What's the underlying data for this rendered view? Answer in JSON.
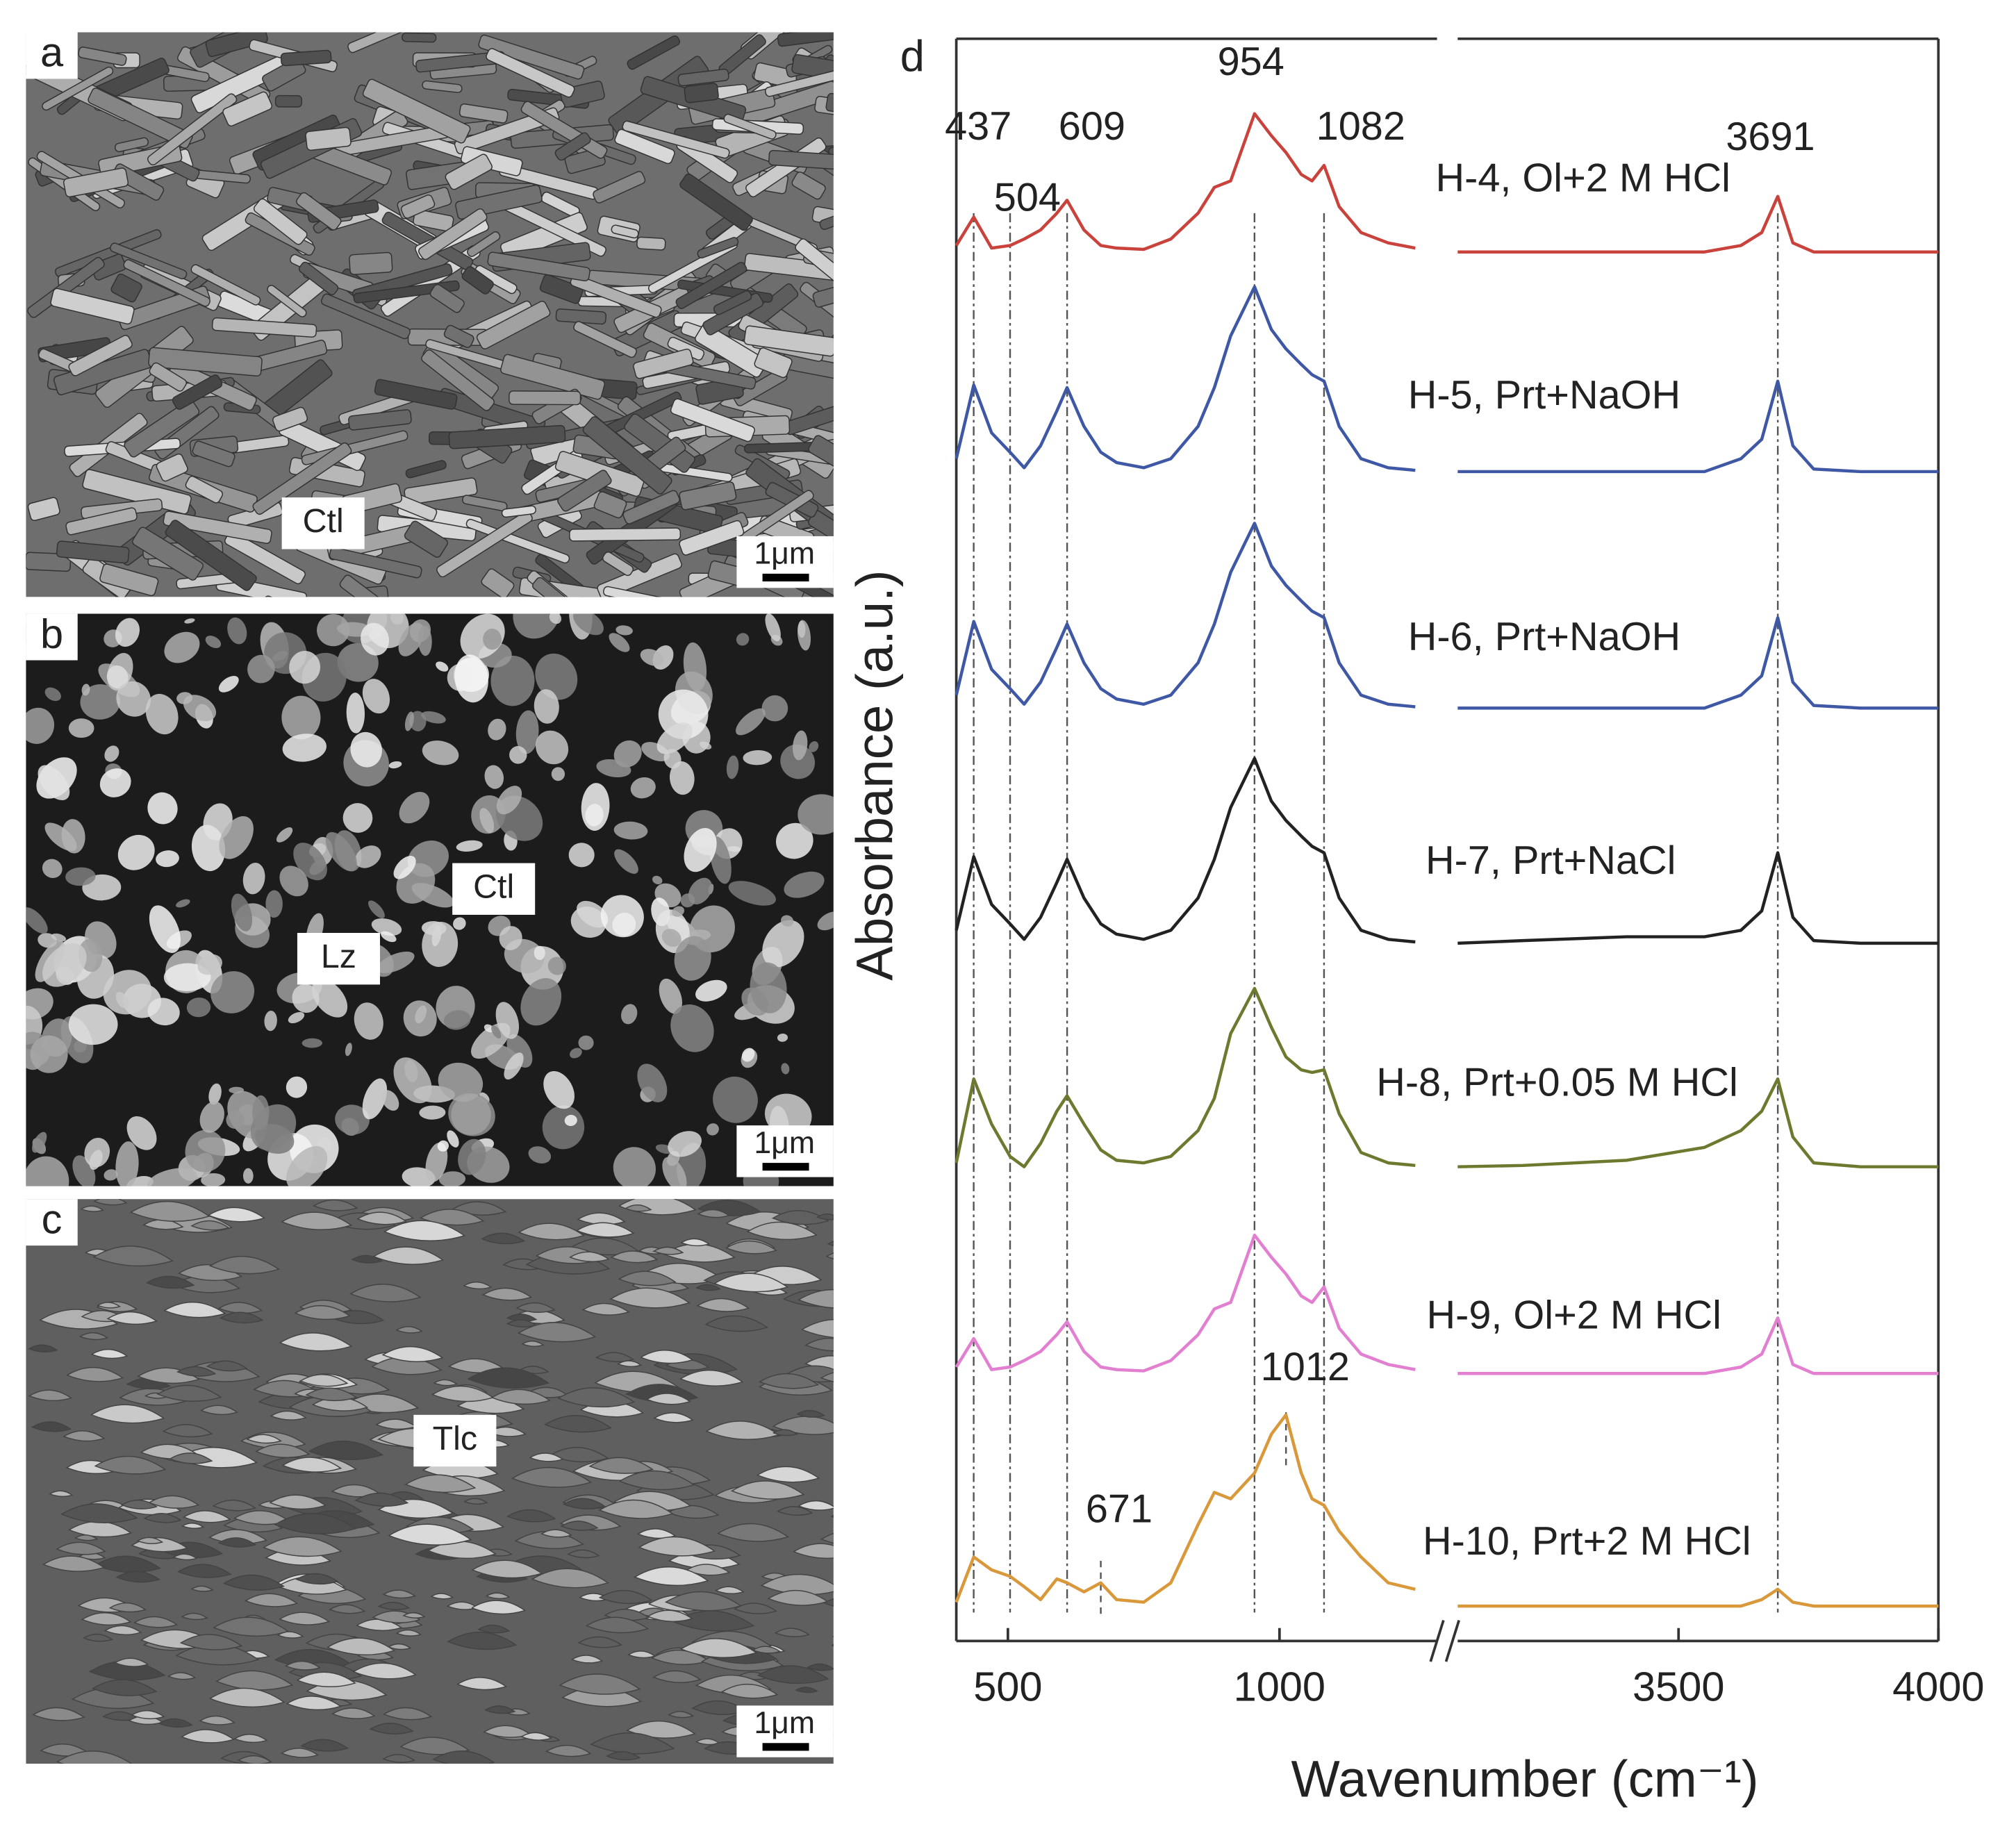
{
  "sem_panels": [
    {
      "label": "a",
      "annotations": [
        "Ctl"
      ],
      "scale_bar": "1μm"
    },
    {
      "label": "b",
      "annotations": [
        "Lz",
        "Ctl"
      ],
      "scale_bar": "1μm"
    },
    {
      "label": "c",
      "annotations": [
        "Tlc"
      ],
      "scale_bar": "1μm"
    }
  ],
  "chart_data": {
    "type": "line",
    "panel_label": "d",
    "x_label": "Wavenumber (cm⁻¹)",
    "y_label": "Absorbance (a.u.)",
    "x_segments": [
      {
        "xlim": [
          405,
          1290
        ],
        "xticks": [
          500,
          1000
        ]
      },
      {
        "xlim": [
          3075,
          4000
        ],
        "xticks": [
          3500,
          4000
        ]
      }
    ],
    "ylim": [
      0,
      124
    ],
    "peaks": [
      437,
      504,
      609,
      954,
      1082,
      3691
    ],
    "minor_peaks": [
      671,
      1012
    ],
    "x": [
      405,
      437,
      470,
      504,
      530,
      560,
      590,
      609,
      640,
      671,
      700,
      750,
      800,
      850,
      880,
      910,
      954,
      985,
      1012,
      1040,
      1060,
      1082,
      1110,
      1150,
      1200,
      1250,
      3075,
      3200,
      3400,
      3550,
      3620,
      3660,
      3691,
      3720,
      3760,
      3850,
      4000
    ],
    "series": [
      {
        "name": "H-4, Ol+2 M HCl",
        "color": "#c9423b",
        "values": [
          108,
          110.2,
          107.8,
          108,
          108.5,
          109.2,
          110.5,
          111.5,
          109.2,
          108,
          107.8,
          107.7,
          108.5,
          110.5,
          112.5,
          113,
          118.2,
          116.5,
          115.2,
          113.5,
          113,
          114.2,
          111,
          109,
          108.2,
          107.8,
          107.5,
          107.5,
          107.5,
          107.5,
          108,
          109,
          111.8,
          108.2,
          107.5,
          107.5,
          107.5
        ]
      },
      {
        "name": "H-5, Prt+NaOH",
        "color": "#3f58a6",
        "values": [
          91.5,
          97.2,
          93.5,
          92,
          90.8,
          92.5,
          95.2,
          97,
          94,
          92,
          91.2,
          90.8,
          91.5,
          94,
          97,
          101,
          104.8,
          101.5,
          100,
          98.8,
          98,
          97.5,
          94,
          91.5,
          90.8,
          90.6,
          90.5,
          90.5,
          90.5,
          90.5,
          91.5,
          93,
          97.5,
          92.5,
          90.7,
          90.5,
          90.5
        ]
      },
      {
        "name": "H-6, Prt+NaOH",
        "color": "#3f58a6",
        "values": [
          73.2,
          78.9,
          75.2,
          73.7,
          72.5,
          74.2,
          76.9,
          78.7,
          75.7,
          73.7,
          72.9,
          72.5,
          73.2,
          75.7,
          78.7,
          82.7,
          86.5,
          83.2,
          81.7,
          80.5,
          79.7,
          79.2,
          75.7,
          73.2,
          72.5,
          72.3,
          72.2,
          72.2,
          72.2,
          72.2,
          73.2,
          74.7,
          79.2,
          74.2,
          72.4,
          72.2,
          72.2
        ]
      },
      {
        "name": "H-7, Prt+NaCl",
        "color": "#222222",
        "values": [
          55,
          60.7,
          57,
          55.5,
          54.3,
          56,
          58.7,
          60.5,
          57.5,
          55.5,
          54.7,
          54.3,
          55,
          57.5,
          60.5,
          64.5,
          68.3,
          65,
          63.5,
          62.3,
          61.5,
          61,
          57.5,
          55,
          54.3,
          54.1,
          54,
          54.2,
          54.5,
          54.5,
          55,
          56.5,
          61,
          56,
          54.2,
          54,
          54
        ]
      },
      {
        "name": "H-8, Prt+0.05 M HCl",
        "color": "#6b7a2e",
        "values": [
          37,
          43.5,
          40,
          37.5,
          36.7,
          38.5,
          41,
          42.2,
          40,
          38,
          37.2,
          37,
          37.5,
          39.5,
          42,
          47,
          50.5,
          47.5,
          45.2,
          44.2,
          44,
          44.2,
          40.8,
          37.8,
          37,
          36.8,
          36.7,
          36.8,
          37.2,
          38.2,
          39.5,
          41,
          43.5,
          39,
          37,
          36.7,
          36.7
        ]
      },
      {
        "name": "H-9, Ol+2 M HCl",
        "color": "#e27fd0",
        "values": [
          21.2,
          23.4,
          21,
          21.2,
          21.7,
          22.4,
          23.7,
          24.7,
          22.4,
          21.2,
          21,
          20.9,
          21.7,
          23.7,
          25.7,
          26.2,
          31.4,
          29.7,
          28.4,
          26.7,
          26.2,
          27.4,
          24.2,
          22.2,
          21.4,
          21,
          20.7,
          20.7,
          20.7,
          20.7,
          21.2,
          22.2,
          25,
          21.4,
          20.7,
          20.7,
          20.7
        ]
      },
      {
        "name": "H-10, Prt+2 M HCl",
        "color": "#d9983a",
        "values": [
          3,
          6.5,
          5.5,
          5,
          4.2,
          3.2,
          4.8,
          4.5,
          3.8,
          4.5,
          3.2,
          3,
          4.5,
          9,
          11.5,
          11,
          13,
          16,
          17.5,
          13,
          11,
          10.5,
          8.5,
          6.5,
          4.5,
          4,
          2.7,
          2.7,
          2.7,
          2.7,
          2.7,
          3.2,
          4,
          3,
          2.7,
          2.7,
          2.7
        ]
      }
    ]
  }
}
